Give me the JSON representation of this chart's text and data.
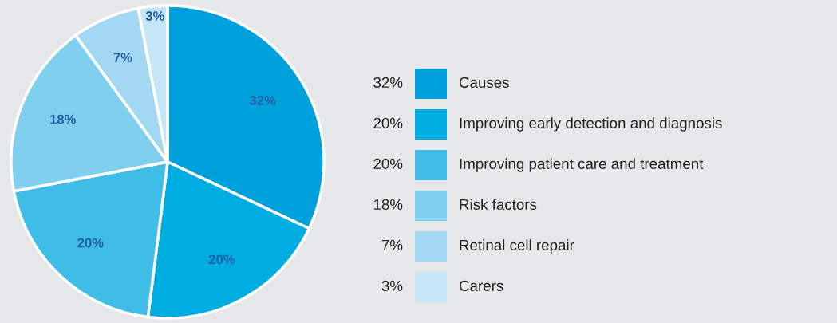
{
  "chart_data": {
    "type": "pie",
    "categories": [
      "Causes",
      "Improving early detection and diagnosis",
      "Improving patient care and treatment",
      "Risk factors",
      "Retinal cell repair",
      "Carers"
    ],
    "values": [
      32,
      20,
      20,
      18,
      7,
      3
    ],
    "colors": [
      "#00a0dc",
      "#00ade0",
      "#40bde6",
      "#80cfee",
      "#a3d8f2",
      "#c5e6f6"
    ],
    "value_labels": [
      "32%",
      "20%",
      "20%",
      "18%",
      "7%",
      "3%"
    ],
    "legend": "right"
  }
}
